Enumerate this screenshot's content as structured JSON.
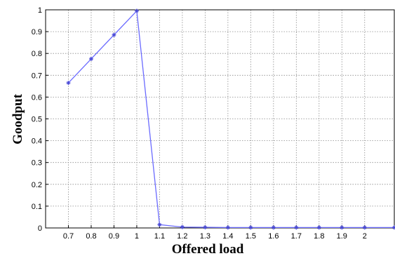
{
  "chart_data": {
    "type": "line",
    "xlabel": "Offered load",
    "ylabel": "Goodput",
    "x_tick_labels": [
      "0.7",
      "0.8",
      "0.9",
      "1",
      "1.1",
      "1.2",
      "1.3",
      "1.4",
      "1.5",
      "1.6",
      "1.7",
      "1.8",
      "1.9",
      "2"
    ],
    "y_tick_labels": [
      "0",
      "0.1",
      "0.2",
      "0.3",
      "0.4",
      "0.5",
      "0.6",
      "0.7",
      "0.8",
      "0.9",
      "1"
    ],
    "xlim": [
      0.6,
      2.13
    ],
    "ylim": [
      0,
      1
    ],
    "grid": true,
    "series_color": "#6b6bff",
    "marker_color": "#4a4ad6",
    "series": [
      {
        "x": [
          0.7,
          0.8,
          0.9,
          1.0,
          1.1,
          1.2,
          1.3,
          1.4,
          1.5,
          1.6,
          1.7,
          1.8,
          1.9,
          2.0,
          2.13
        ],
        "y": [
          0.665,
          0.775,
          0.885,
          0.995,
          0.015,
          0.004,
          0.003,
          0.002,
          0.002,
          0.002,
          0.002,
          0.002,
          0.002,
          0.002,
          0.002
        ]
      }
    ]
  }
}
